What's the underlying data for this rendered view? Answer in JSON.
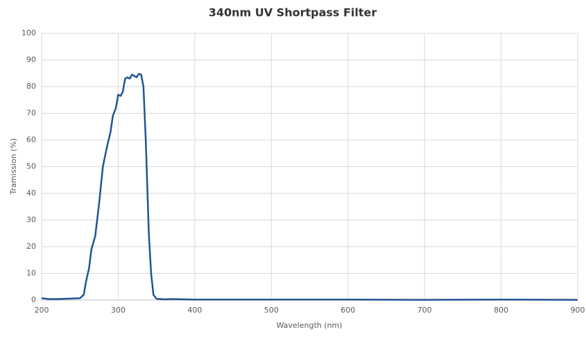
{
  "chart_data": {
    "type": "line",
    "title": "340nm UV Shortpass Filter",
    "x_label": "Wavelength (nm)",
    "y_label": "Tramission (%)",
    "x": [
      200,
      210,
      220,
      230,
      240,
      250,
      255,
      258,
      262,
      265,
      270,
      275,
      280,
      285,
      290,
      293,
      297,
      300,
      303,
      306,
      309,
      312,
      315,
      318,
      321,
      324,
      327,
      330,
      333,
      336,
      340,
      343,
      346,
      350,
      360,
      370,
      400,
      500,
      600,
      700,
      800,
      900
    ],
    "series": [
      {
        "name": "Transmission",
        "color": "#1f5591",
        "values": [
          0.7,
          0.4,
          0.4,
          0.5,
          0.6,
          0.7,
          2,
          7,
          12,
          19,
          24,
          36,
          50,
          57,
          63,
          69,
          72,
          77,
          76.5,
          78,
          83,
          83.5,
          83,
          84.5,
          84,
          83.5,
          84.8,
          84.5,
          80,
          60,
          25,
          10,
          2,
          0.5,
          0.3,
          0.4,
          0.2,
          0.2,
          0.2,
          0.1,
          0.2,
          0.1
        ]
      }
    ],
    "xlim": [
      200,
      900
    ],
    "xticks": [
      200,
      300,
      400,
      500,
      600,
      700,
      800,
      900
    ],
    "ylim": [
      0,
      100
    ],
    "yticks": [
      0,
      10,
      20,
      30,
      40,
      50,
      60,
      70,
      80,
      90,
      100
    ],
    "grid": true
  }
}
